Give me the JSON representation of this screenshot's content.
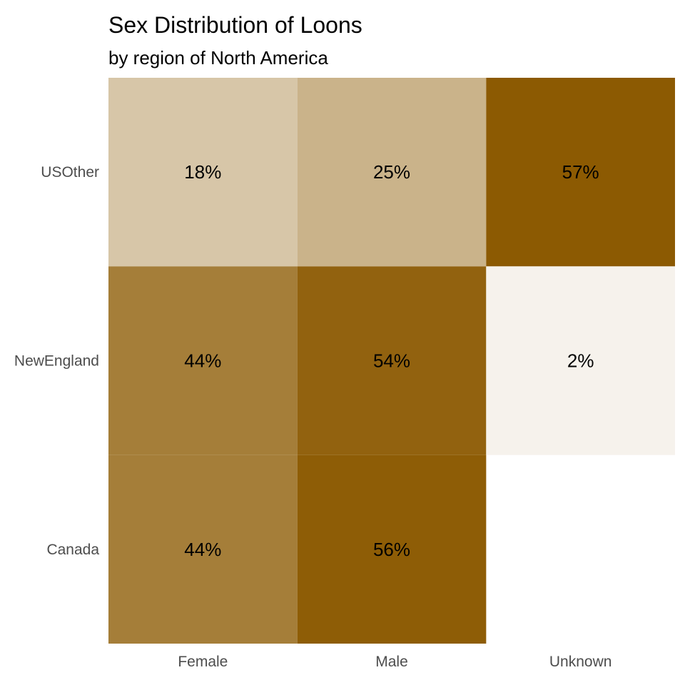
{
  "chart_data": {
    "type": "heatmap",
    "title": "Sex Distribution of Loons",
    "subtitle": "by region of North America",
    "xlabel": "",
    "ylabel": "",
    "x_categories": [
      "Female",
      "Male",
      "Unknown"
    ],
    "y_categories": [
      "Canada",
      "NewEngland",
      "USOther"
    ],
    "cells": [
      {
        "x": "Female",
        "y": "USOther",
        "value": 18,
        "label": "18%"
      },
      {
        "x": "Male",
        "y": "USOther",
        "value": 25,
        "label": "25%"
      },
      {
        "x": "Unknown",
        "y": "USOther",
        "value": 57,
        "label": "57%"
      },
      {
        "x": "Female",
        "y": "NewEngland",
        "value": 44,
        "label": "44%"
      },
      {
        "x": "Male",
        "y": "NewEngland",
        "value": 54,
        "label": "54%"
      },
      {
        "x": "Unknown",
        "y": "NewEngland",
        "value": 2,
        "label": "2%"
      },
      {
        "x": "Female",
        "y": "Canada",
        "value": 44,
        "label": "44%"
      },
      {
        "x": "Male",
        "y": "Canada",
        "value": 56,
        "label": "56%"
      }
    ],
    "color_scale": {
      "low": "#faf8f4",
      "high": "#8c5a02",
      "domain": [
        0,
        57
      ]
    },
    "legend": "none",
    "grid": false
  }
}
